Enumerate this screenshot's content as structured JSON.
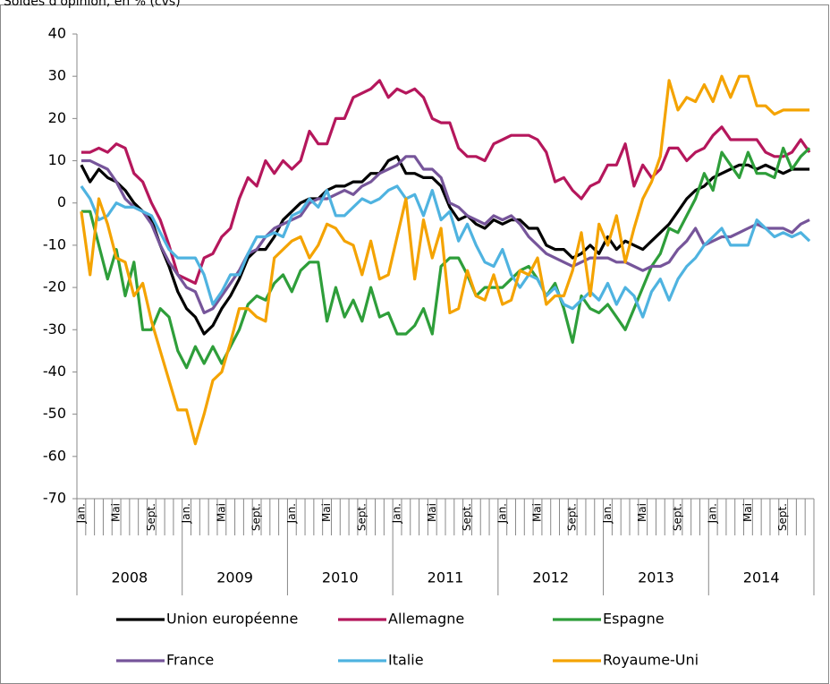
{
  "chart_data": {
    "type": "line",
    "title": "Soldes d'opinion, en % (cvs)",
    "categories": [
      "Jan.",
      null,
      null,
      null,
      "Mai",
      null,
      null,
      null,
      "Sept.",
      null,
      null,
      null,
      "Jan.",
      null,
      null,
      null,
      "Mai",
      null,
      null,
      null,
      "Sept.",
      null,
      null,
      null,
      "Jan.",
      null,
      null,
      null,
      "Mai",
      null,
      null,
      null,
      "Sept.",
      null,
      null,
      null,
      "Jan.",
      null,
      null,
      null,
      "Mai",
      null,
      null,
      null,
      "Sept.",
      null,
      null,
      null,
      "Jan.",
      null,
      null,
      null,
      "Mai",
      null,
      null,
      null,
      "Sept.",
      null,
      null,
      null,
      "Jan.",
      null,
      null,
      null,
      "Mai",
      null,
      null,
      null,
      "Sept.",
      null,
      null,
      null,
      "Jan.",
      null,
      null,
      null,
      "Mai",
      null,
      null,
      null,
      "Sept.",
      null,
      null,
      null
    ],
    "years": [
      "2008",
      "2009",
      "2010",
      "2011",
      "2012",
      "2013",
      "2014"
    ],
    "ylim": [
      -70,
      40
    ],
    "yticks": [
      -70,
      -60,
      -50,
      -40,
      -30,
      -20,
      -10,
      0,
      10,
      20,
      30,
      40
    ],
    "series": [
      {
        "name": "Union européenne",
        "color": "#000000",
        "values": [
          9,
          5,
          8,
          6,
          5,
          3,
          0,
          -2,
          -4,
          -10,
          -15,
          -21,
          -25,
          -27,
          -31,
          -29,
          -25,
          -22,
          -18,
          -13,
          -11,
          -11,
          -8,
          -4,
          -2,
          0,
          1,
          1,
          3,
          4,
          4,
          5,
          5,
          7,
          7,
          10,
          11,
          7,
          7,
          6,
          6,
          4,
          -1,
          -4,
          -3,
          -5,
          -6,
          -4,
          -5,
          -4,
          -4,
          -6,
          -6,
          -10,
          -11,
          -11,
          -13,
          -12,
          -10,
          -12,
          -8,
          -11,
          -9,
          -10,
          -11,
          -9,
          -7,
          -5,
          -2,
          1,
          3,
          4,
          6,
          7,
          8,
          9,
          9,
          8,
          9,
          8,
          7,
          8,
          8,
          8
        ]
      },
      {
        "name": "Allemagne",
        "color": "#b5175c",
        "values": [
          12,
          12,
          13,
          12,
          14,
          13,
          7,
          5,
          0,
          -4,
          -10,
          -17,
          -18,
          -19,
          -13,
          -12,
          -8,
          -6,
          1,
          6,
          4,
          10,
          7,
          10,
          8,
          10,
          17,
          14,
          14,
          20,
          20,
          25,
          26,
          27,
          29,
          25,
          27,
          26,
          27,
          25,
          20,
          19,
          19,
          13,
          11,
          11,
          10,
          14,
          15,
          16,
          16,
          16,
          15,
          12,
          5,
          6,
          3,
          1,
          4,
          5,
          9,
          9,
          14,
          4,
          9,
          6,
          8,
          13,
          13,
          10,
          12,
          13,
          16,
          18,
          15,
          15,
          15,
          15,
          12,
          11,
          11,
          12,
          15,
          12
        ]
      },
      {
        "name": "Espagne",
        "color": "#2e9e3a",
        "values": [
          -2,
          -2,
          -10,
          -18,
          -11,
          -22,
          -14,
          -30,
          -30,
          -25,
          -27,
          -35,
          -39,
          -34,
          -38,
          -34,
          -38,
          -34,
          -30,
          -24,
          -22,
          -23,
          -19,
          -17,
          -21,
          -16,
          -14,
          -14,
          -28,
          -20,
          -27,
          -23,
          -28,
          -20,
          -27,
          -26,
          -31,
          -31,
          -29,
          -25,
          -31,
          -15,
          -13,
          -13,
          -17,
          -22,
          -20,
          -20,
          -20,
          -18,
          -16,
          -15,
          -18,
          -22,
          -19,
          -25,
          -33,
          -22,
          -25,
          -26,
          -24,
          -27,
          -30,
          -25,
          -20,
          -15,
          -12,
          -6,
          -7,
          -3,
          1,
          7,
          3,
          12,
          9,
          6,
          12,
          7,
          7,
          6,
          13,
          8,
          11,
          13
        ]
      },
      {
        "name": "France",
        "color": "#76559a",
        "values": [
          10,
          10,
          9,
          8,
          5,
          1,
          -1,
          -2,
          -5,
          -10,
          -14,
          -17,
          -20,
          -21,
          -26,
          -25,
          -22,
          -19,
          -16,
          -12,
          -11,
          -8,
          -6,
          -5,
          -4,
          -3,
          0,
          1,
          1,
          2,
          3,
          2,
          4,
          5,
          7,
          8,
          9,
          11,
          11,
          8,
          8,
          6,
          0,
          -1,
          -3,
          -4,
          -5,
          -3,
          -4,
          -3,
          -5,
          -8,
          -10,
          -12,
          -13,
          -14,
          -15,
          -14,
          -13,
          -13,
          -13,
          -14,
          -14,
          -15,
          -16,
          -15,
          -15,
          -14,
          -11,
          -9,
          -6,
          -10,
          -9,
          -8,
          -8,
          -7,
          -6,
          -5,
          -6,
          -6,
          -6,
          -7,
          -5,
          -4
        ]
      },
      {
        "name": "Italie",
        "color": "#4fb3e0",
        "values": [
          4,
          1,
          -4,
          -3,
          0,
          -1,
          -1,
          -2,
          -3,
          -7,
          -11,
          -13,
          -13,
          -13,
          -17,
          -24,
          -21,
          -17,
          -17,
          -12,
          -8,
          -8,
          -7,
          -8,
          -3,
          -2,
          1,
          -1,
          3,
          -3,
          -3,
          -1,
          1,
          0,
          1,
          3,
          4,
          1,
          2,
          -3,
          3,
          -4,
          -2,
          -9,
          -5,
          -10,
          -14,
          -15,
          -11,
          -17,
          -20,
          -17,
          -18,
          -22,
          -20,
          -24,
          -25,
          -23,
          -21,
          -23,
          -19,
          -24,
          -20,
          -22,
          -27,
          -21,
          -18,
          -23,
          -18,
          -15,
          -13,
          -10,
          -8,
          -6,
          -10,
          -10,
          -10,
          -4,
          -6,
          -8,
          -7,
          -8,
          -7,
          -9
        ]
      },
      {
        "name": "Royaume-Uni",
        "color": "#f4a300",
        "values": [
          -2,
          -17,
          1,
          -5,
          -13,
          -14,
          -22,
          -19,
          -28,
          -35,
          -42,
          -49,
          -49,
          -57,
          -50,
          -42,
          -40,
          -33,
          -25,
          -25,
          -27,
          -28,
          -13,
          -11,
          -9,
          -8,
          -13,
          -10,
          -5,
          -6,
          -9,
          -10,
          -17,
          -9,
          -18,
          -17,
          -8,
          1,
          -18,
          -4,
          -13,
          -6,
          -26,
          -25,
          -16,
          -22,
          -23,
          -17,
          -24,
          -23,
          -16,
          -17,
          -13,
          -24,
          -22,
          -22,
          -16,
          -7,
          -22,
          -5,
          -10,
          -3,
          -14,
          -6,
          1,
          5,
          11,
          29,
          22,
          25,
          24,
          28,
          24,
          30,
          25,
          30,
          30,
          23,
          23,
          21,
          22,
          22,
          22,
          22
        ]
      }
    ]
  }
}
